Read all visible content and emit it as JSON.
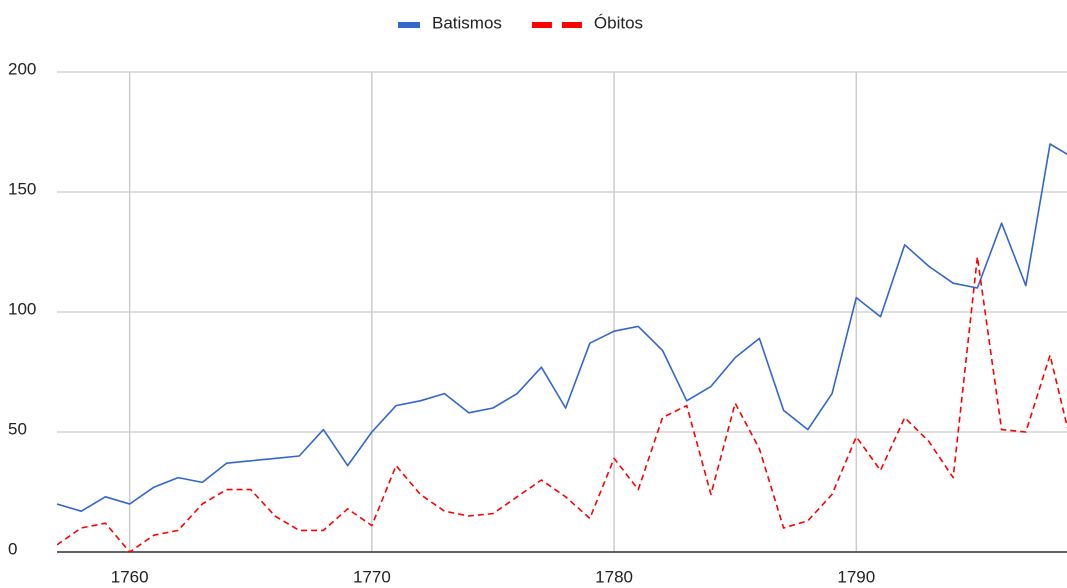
{
  "chart_data": {
    "type": "line",
    "x": [
      1757,
      1758,
      1759,
      1760,
      1761,
      1762,
      1763,
      1764,
      1765,
      1766,
      1767,
      1768,
      1769,
      1770,
      1771,
      1772,
      1773,
      1774,
      1775,
      1776,
      1777,
      1778,
      1779,
      1780,
      1781,
      1782,
      1783,
      1784,
      1785,
      1786,
      1787,
      1788,
      1789,
      1790,
      1791,
      1792,
      1793,
      1794,
      1795,
      1796,
      1797,
      1798,
      1799
    ],
    "series": [
      {
        "name": "Batismos",
        "color": "#3366cc",
        "dashed": false,
        "values": [
          20,
          17,
          23,
          20,
          27,
          31,
          29,
          37,
          38,
          39,
          40,
          51,
          36,
          50,
          61,
          63,
          66,
          58,
          60,
          66,
          77,
          60,
          87,
          92,
          94,
          84,
          63,
          69,
          81,
          89,
          59,
          51,
          66,
          106,
          98,
          128,
          119,
          112,
          110,
          137,
          111,
          170,
          164
        ]
      },
      {
        "name": "Óbitos",
        "color": "#ff0000",
        "dashed": true,
        "values": [
          3,
          10,
          12,
          0,
          7,
          9,
          20,
          26,
          26,
          15,
          9,
          9,
          18,
          11,
          36,
          24,
          17,
          15,
          16,
          23,
          30,
          23,
          14,
          39,
          26,
          56,
          61,
          24,
          62,
          43,
          10,
          13,
          24,
          48,
          34,
          56,
          46,
          31,
          123,
          51,
          50,
          82,
          40
        ]
      }
    ],
    "xlim": [
      1757,
      1798.7
    ],
    "xticks": [
      1760,
      1770,
      1780,
      1790
    ],
    "ylim": [
      0,
      200
    ],
    "yticks": [
      0,
      50,
      100,
      150,
      200
    ],
    "grid": true,
    "legend": "top"
  }
}
